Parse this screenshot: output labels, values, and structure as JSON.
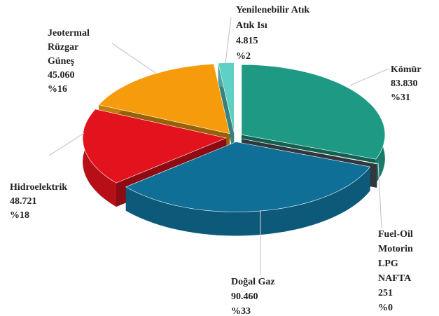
{
  "chart_data": {
    "type": "pie",
    "categories": [
      [
        "Kömür"
      ],
      [
        "Fuel-Oil",
        "Motorin",
        "LPG",
        "NAFTA"
      ],
      [
        "Doğal Gaz"
      ],
      [
        "Hidroelektrik"
      ],
      [
        "Jeotermal",
        "Rüzgar",
        "Güneş"
      ],
      [
        "Yenilenebilir Atık",
        "Atık Isı"
      ]
    ],
    "values": [
      83830,
      251,
      90460,
      48721,
      45060,
      4815
    ],
    "value_labels": [
      "83.830",
      "251",
      "90.460",
      "48.721",
      "45.060",
      "4.815"
    ],
    "percents": [
      31,
      0,
      33,
      18,
      16,
      2
    ],
    "percent_labels": [
      "%31",
      "%0",
      "%33",
      "%18",
      "%16",
      "%2"
    ],
    "colors": [
      "#1e9a84",
      "#4d5862",
      "#0f6f97",
      "#e3131e",
      "#f59b0c",
      "#5fd0c6"
    ]
  }
}
